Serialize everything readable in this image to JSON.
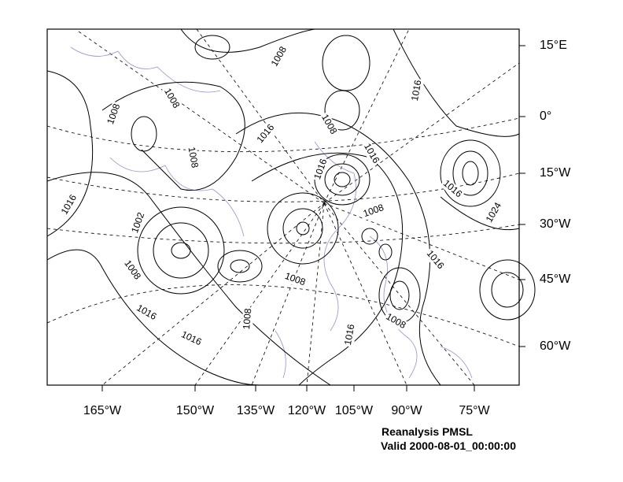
{
  "map": {
    "right_labels": [
      "15°E",
      "0°",
      "15°W",
      "30°W",
      "45°W",
      "60°W"
    ],
    "bottom_labels": [
      "165°W",
      "150°W",
      "135°W",
      "120°W",
      "105°W",
      "90°W",
      "75°W"
    ],
    "contour_labels": [
      "1008",
      "1008",
      "1008",
      "1008",
      "1008",
      "1016",
      "1016",
      "1016",
      "1016",
      "1016",
      "1002",
      "1008",
      "1016",
      "1024",
      "1016",
      "1008",
      "1008",
      "1016",
      "1016",
      "1008",
      "1016",
      "1008"
    ],
    "title": "Reanalysis PMSL",
    "subtitle": "Valid 2000-08-01_00:00:00"
  }
}
